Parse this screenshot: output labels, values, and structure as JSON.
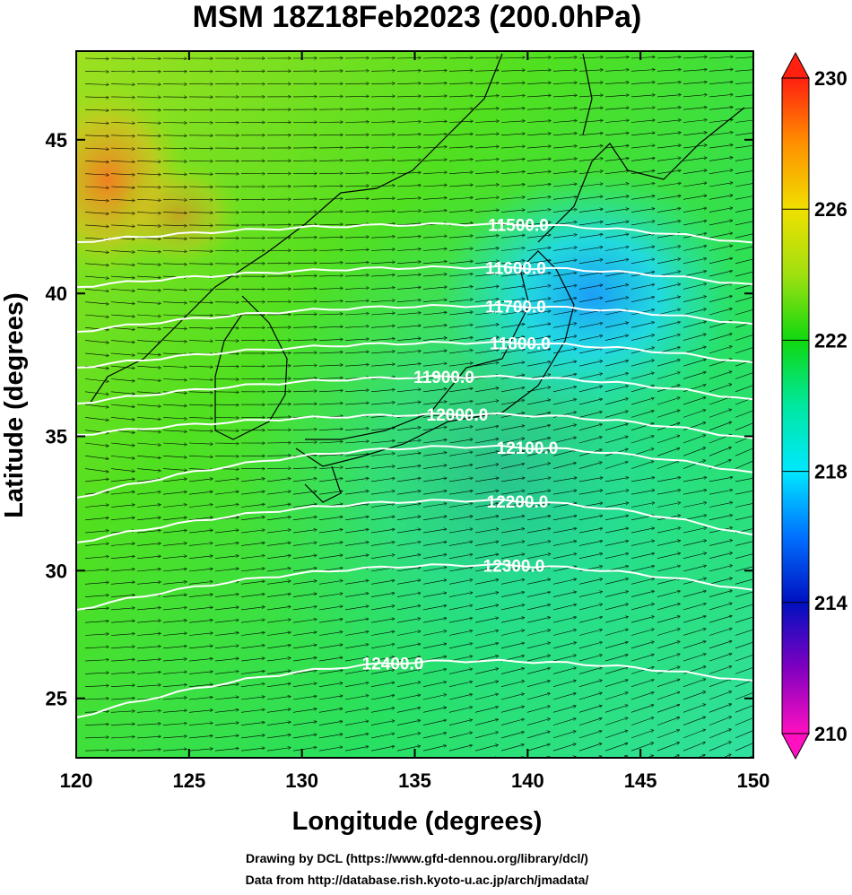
{
  "chart_data": {
    "type": "map",
    "title": "MSM 18Z18Feb2023 (200.0hPa)",
    "x_label": "Longitude (degrees)",
    "y_label": "Latitude  (degrees)",
    "projection": "mercator",
    "xlim": [
      120,
      150
    ],
    "ylim": [
      22.6,
      47.7
    ],
    "xticks": [
      120,
      125,
      130,
      135,
      140,
      145,
      150
    ],
    "yticks": [
      25,
      30,
      35,
      40,
      45
    ],
    "contours": [
      {
        "value": 11500,
        "label": "11500.0"
      },
      {
        "value": 11600,
        "label": "11600.0"
      },
      {
        "value": 11700,
        "label": "11700.0"
      },
      {
        "value": 11800,
        "label": "11800.0"
      },
      {
        "value": 11900,
        "label": "11900.0"
      },
      {
        "value": 12000,
        "label": "12000.0"
      },
      {
        "value": 12100,
        "label": "12100.0"
      },
      {
        "value": 12200,
        "label": "12200.0"
      },
      {
        "value": 12300,
        "label": "12300.0"
      },
      {
        "value": 12400,
        "label": "12400.0"
      }
    ],
    "contour_color": "#ffffff",
    "colorbar": {
      "lim": [
        210,
        230
      ],
      "ticks": [
        210,
        214,
        218,
        222,
        226,
        230
      ],
      "colors": [
        "#ff10c0",
        "#8000c0",
        "#0010c0",
        "#0070ff",
        "#00e8ff",
        "#00e8a0",
        "#10d810",
        "#a0e010",
        "#f0e000",
        "#ff9000",
        "#ff2010"
      ]
    },
    "credits": [
      "Drawing by DCL (https://www.gfd-dennou.org/library/dcl/)",
      "Data from http://database.rish.kyoto-u.ac.jp/arch/jmadata/"
    ]
  }
}
